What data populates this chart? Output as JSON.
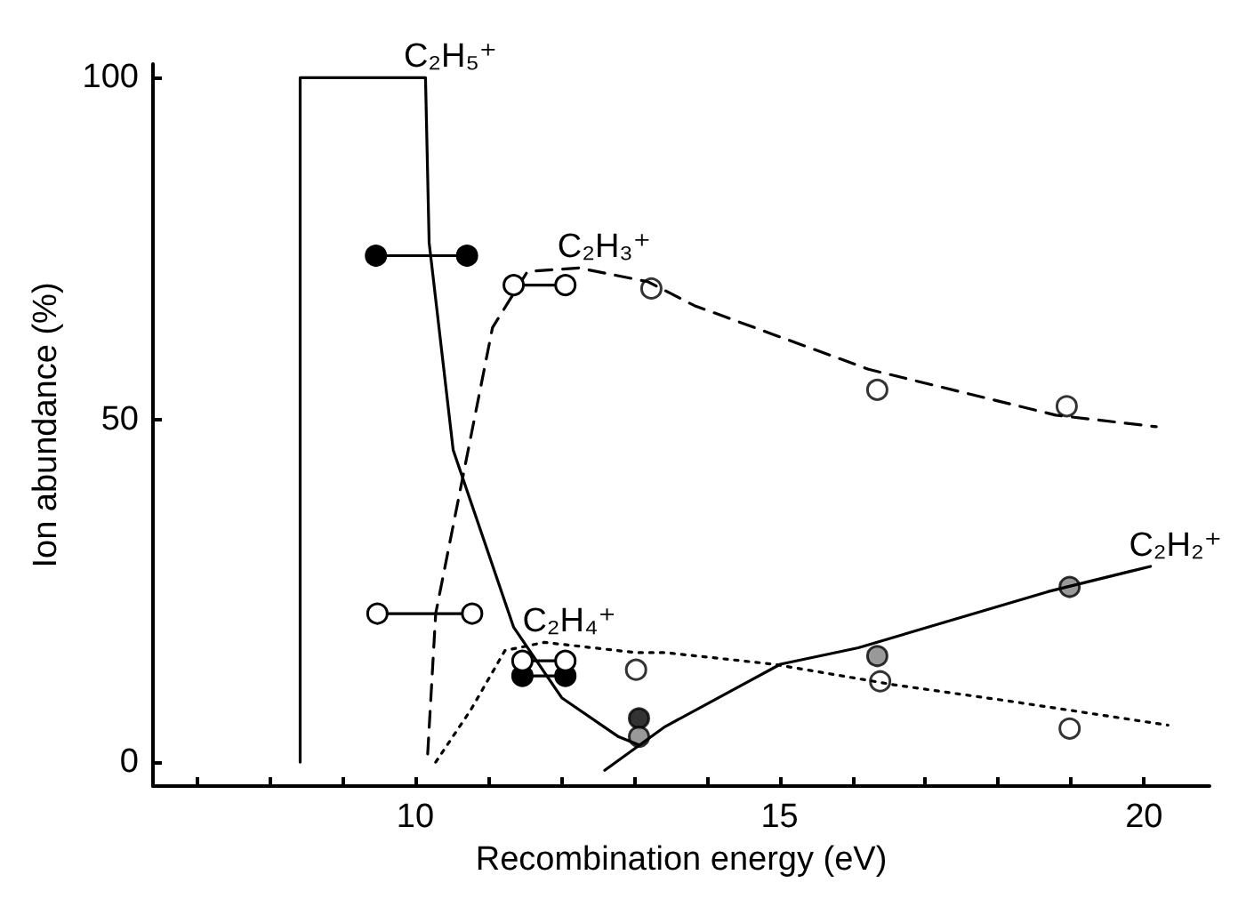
{
  "chart_data": {
    "type": "line",
    "xlabel": "Recombination energy (eV)",
    "ylabel": "Ion abundance (%)",
    "xlim": [
      6.4,
      20.9
    ],
    "ylim": [
      -3.5,
      102
    ],
    "xticks": [
      {
        "value": 7,
        "label": null
      },
      {
        "value": 8,
        "label": null
      },
      {
        "value": 9,
        "label": null
      },
      10,
      {
        "value": 11,
        "label": null
      },
      {
        "value": 12,
        "label": null
      },
      {
        "value": 13,
        "label": null
      },
      {
        "value": 14,
        "label": null
      },
      15,
      {
        "value": 16,
        "label": null
      },
      {
        "value": 17,
        "label": null
      },
      {
        "value": 18,
        "label": null
      },
      {
        "value": 19,
        "label": null
      },
      20
    ],
    "yticks": [
      0,
      50,
      100
    ],
    "grid": false,
    "legend": false,
    "series": [
      {
        "name": "C₂H₅⁺",
        "type": "line",
        "color": "#000000",
        "line_style": "solid",
        "marker": "none",
        "x": [
          8.42,
          8.42,
          10.14,
          10.19,
          10.52,
          11.35,
          12.01,
          12.79,
          13.07
        ],
        "values": [
          0,
          100,
          100,
          75.9,
          45.6,
          19.7,
          9.4,
          3.7,
          2.5
        ]
      },
      {
        "name": "C₂H₃⁺",
        "type": "line",
        "color": "#000000",
        "line_style": "dashed",
        "marker": "none",
        "x": [
          10.17,
          10.28,
          11.06,
          11.54,
          12.25,
          13.19,
          13.83,
          16.22,
          18.79,
          20.17
        ],
        "values": [
          1.2,
          21.7,
          63.5,
          71.7,
          72.2,
          70.2,
          66.7,
          57.4,
          50.7,
          49.0
        ]
      },
      {
        "name": "C₂H₄⁺",
        "type": "line",
        "color": "#000000",
        "line_style": "dotted",
        "marker": "none",
        "x": [
          10.28,
          10.76,
          11.23,
          11.77,
          13.03,
          13.43,
          14.92,
          16.57,
          18.16,
          20.33
        ],
        "values": [
          0,
          7.6,
          16.3,
          17.5,
          16,
          16,
          14.3,
          11.3,
          8.9,
          5.4
        ]
      },
      {
        "name": "C₂H₂⁺",
        "type": "line",
        "color": "#000000",
        "line_style": "solid",
        "marker": "none",
        "x": [
          12.6,
          13.43,
          15.01,
          16.08,
          18.68,
          20.09
        ],
        "values": [
          -1.2,
          5.2,
          14.3,
          16.7,
          24.9,
          28.6
        ]
      },
      {
        "type": "line",
        "color": "#000000",
        "line_style": "solid",
        "marker": "circle",
        "x": [
          9.46,
          10.71
        ],
        "values": [
          74,
          74
        ]
      },
      {
        "type": "line",
        "color": "#000000",
        "line_style": "solid",
        "marker": "circle",
        "x": [
          11.47,
          12.06
        ],
        "values": [
          12.6,
          12.6
        ]
      },
      {
        "type": "scatter",
        "color": "#000000",
        "marker": "circle",
        "x": [
          13.07
        ],
        "values": [
          6.4
        ]
      },
      {
        "type": "line",
        "color": "#ffffff",
        "line_style": "solid",
        "marker": "circle",
        "x": [
          9.48,
          10.78
        ],
        "values": [
          21.7,
          21.7
        ]
      },
      {
        "type": "line",
        "color": "#ffffff",
        "line_style": "solid",
        "marker": "circle",
        "x": [
          11.35,
          12.06
        ],
        "values": [
          69.7,
          69.7
        ]
      },
      {
        "type": "scatter",
        "color": "#ffffff",
        "marker": "circle",
        "x": [
          13.24,
          16.34,
          18.94
        ],
        "values": [
          69.2,
          54.4,
          52.0
        ]
      },
      {
        "type": "line",
        "color": "#ffffff",
        "line_style": "solid",
        "marker": "circle",
        "x": [
          11.47,
          12.06
        ],
        "values": [
          14.8,
          14.8
        ]
      },
      {
        "type": "scatter",
        "color": "#ffffff",
        "marker": "circle",
        "x": [
          13.03,
          16.38,
          18.98
        ],
        "values": [
          13.5,
          11.8,
          4.9
        ]
      },
      {
        "type": "scatter",
        "color": "#808080",
        "marker": "circle",
        "x": [
          13.07,
          16.34,
          18.98
        ],
        "values": [
          3.7,
          15.5,
          25.6
        ]
      }
    ]
  }
}
